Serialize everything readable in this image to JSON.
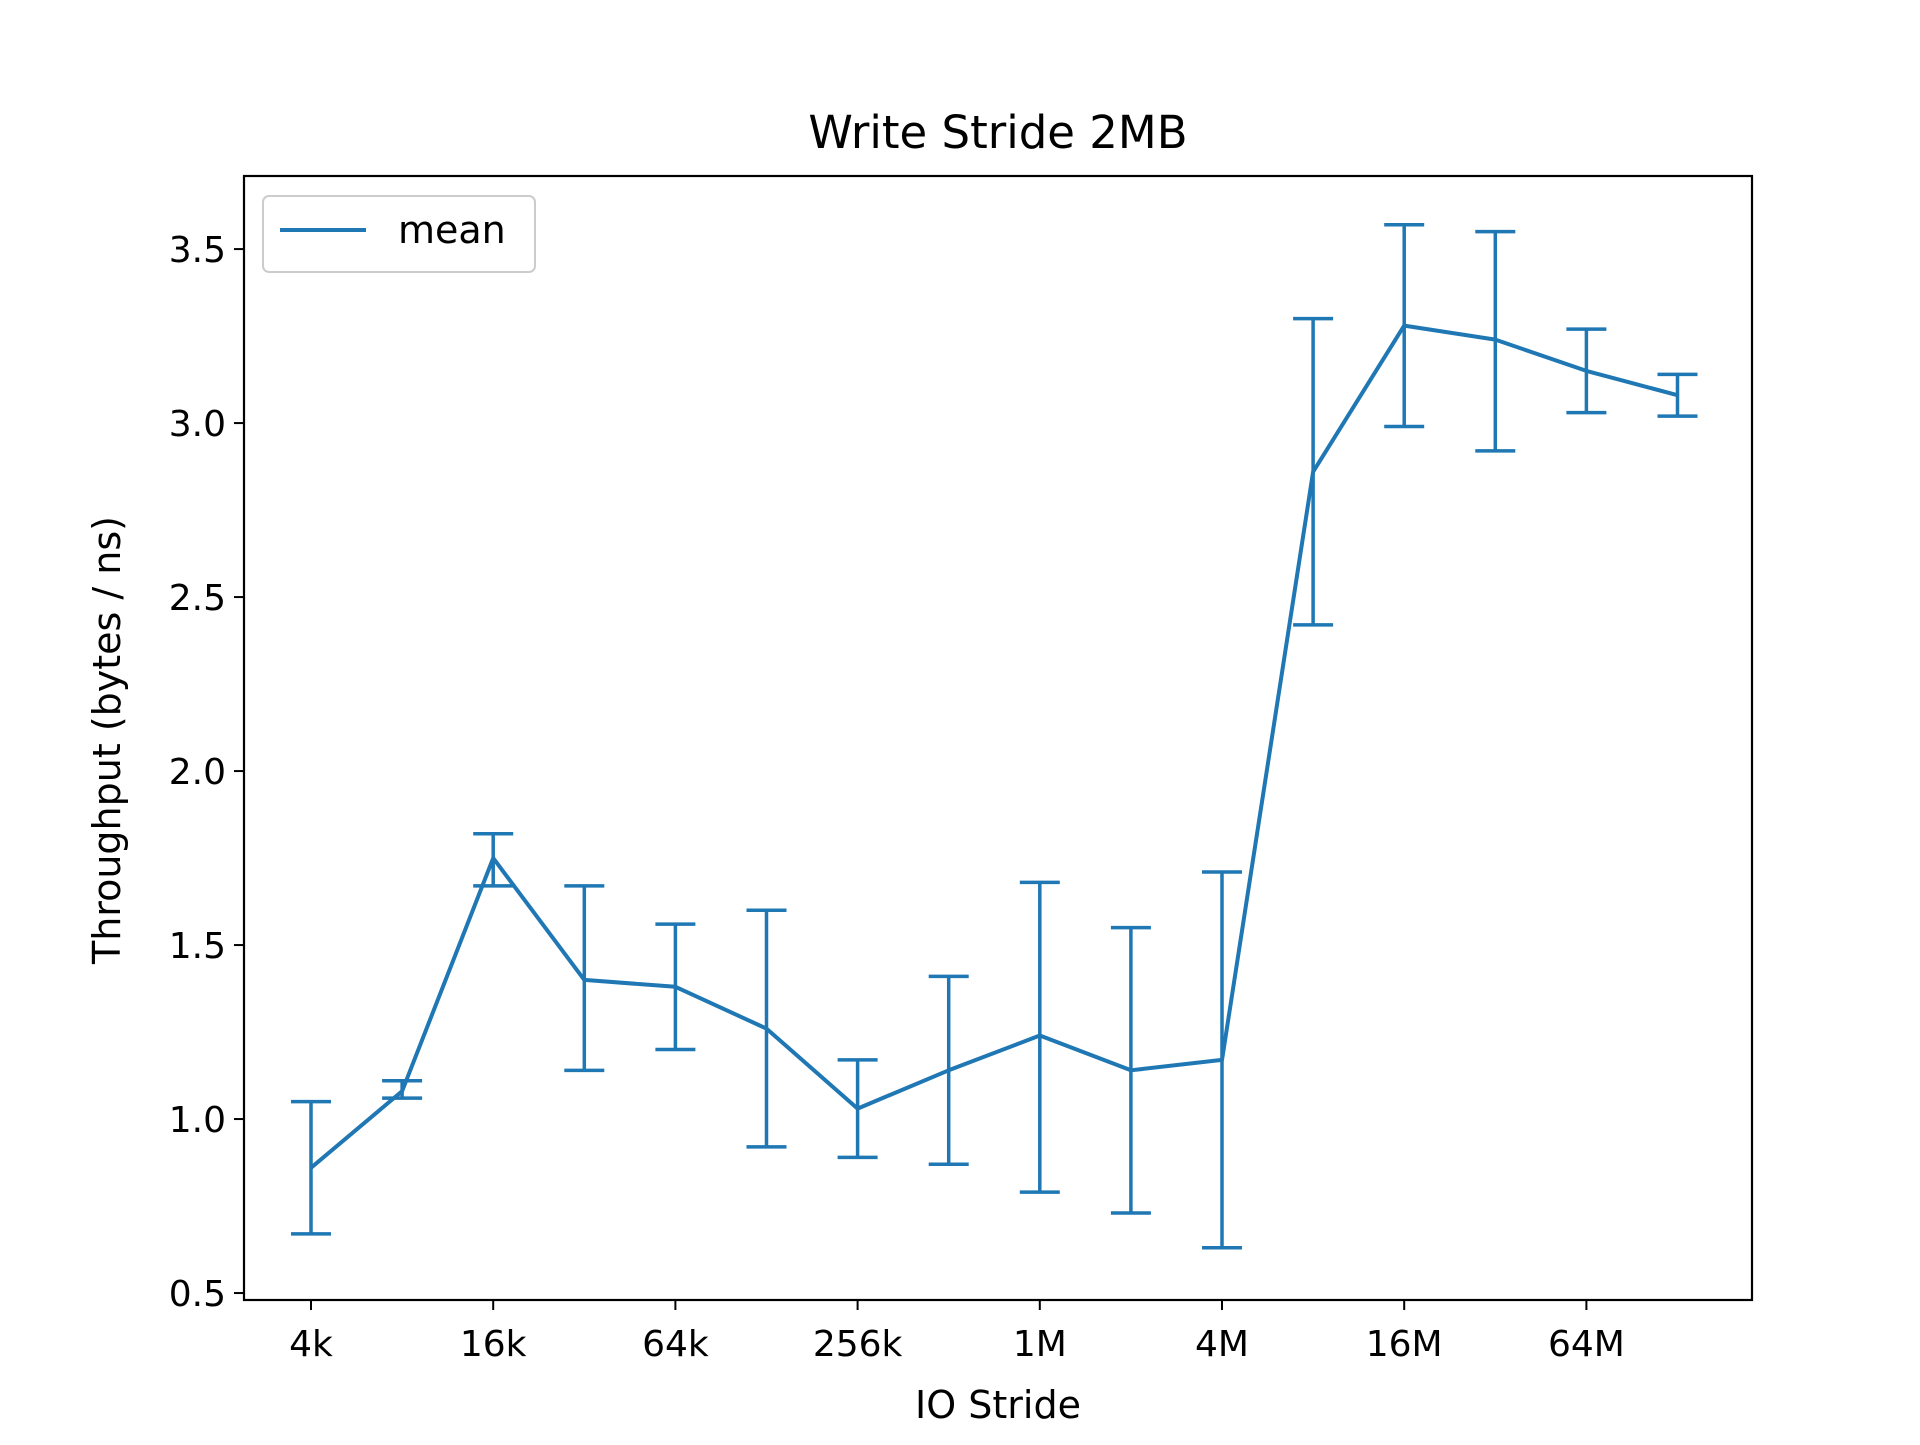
{
  "chart_data": {
    "type": "line",
    "title": "Write Stride 2MB",
    "xlabel": "IO Stride",
    "ylabel": "Throughput (bytes / ns)",
    "x_scale": "log2",
    "x_tick_labels": [
      "4k",
      "16k",
      "64k",
      "256k",
      "1M",
      "4M",
      "16M",
      "64M"
    ],
    "y_ticks": [
      0.5,
      1.0,
      1.5,
      2.0,
      2.5,
      3.0,
      3.5
    ],
    "y_tick_labels": [
      "0.5",
      "1.0",
      "1.5",
      "2.0",
      "2.5",
      "3.0",
      "3.5"
    ],
    "ylim": [
      0.48,
      3.71
    ],
    "grid": false,
    "legend": {
      "placement": "upper-left",
      "entries": [
        "mean"
      ]
    },
    "colors": {
      "series": "#1f77b4",
      "axes": "#000000",
      "legend_border": "#cccccc"
    },
    "x": [
      "4k",
      "8k",
      "16k",
      "32k",
      "64k",
      "128k",
      "256k",
      "512k",
      "1M",
      "2M",
      "4M",
      "8M",
      "16M",
      "32M",
      "64M",
      "128M"
    ],
    "series": [
      {
        "name": "mean",
        "values": [
          0.86,
          1.08,
          1.75,
          1.4,
          1.38,
          1.26,
          1.03,
          1.14,
          1.24,
          1.14,
          1.17,
          2.86,
          3.28,
          3.24,
          3.15,
          3.08
        ],
        "error_low": [
          0.67,
          1.06,
          1.67,
          1.14,
          1.2,
          0.92,
          0.89,
          0.87,
          0.79,
          0.73,
          0.63,
          2.42,
          2.99,
          2.92,
          3.03,
          3.02
        ],
        "error_high": [
          1.05,
          1.11,
          1.82,
          1.67,
          1.56,
          1.6,
          1.17,
          1.41,
          1.68,
          1.55,
          1.71,
          3.3,
          3.57,
          3.55,
          3.27,
          3.14
        ]
      }
    ]
  }
}
